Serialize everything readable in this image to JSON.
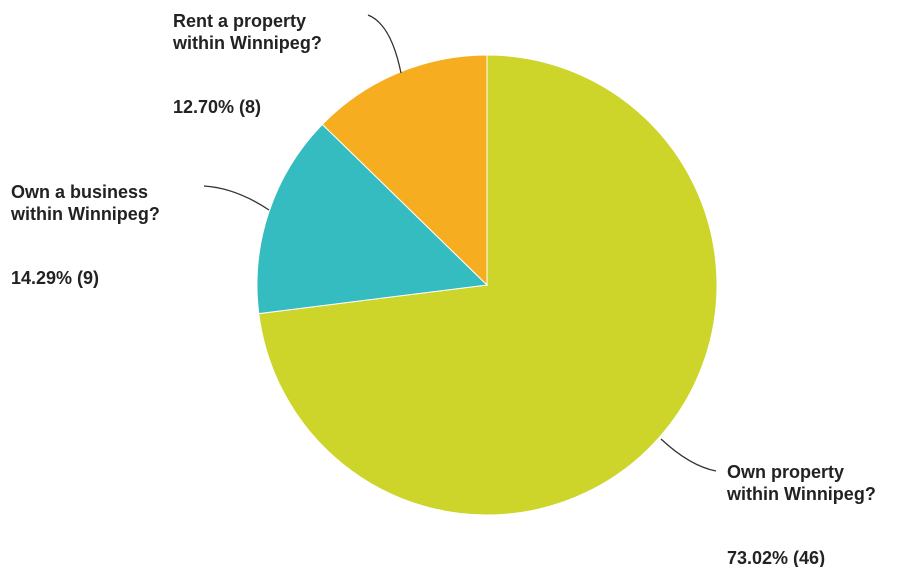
{
  "chart_data": {
    "type": "pie",
    "start_angle_deg": 0,
    "direction": "clockwise",
    "slices": [
      {
        "label_lines": [
          "Own property",
          "within Winnipeg?"
        ],
        "value_label": "73.02% (46)",
        "percent": 73.02,
        "count": 46,
        "color": "#cdd42a"
      },
      {
        "label_lines": [
          "Own a business",
          "within Winnipeg?"
        ],
        "value_label": "14.29% (9)",
        "percent": 14.29,
        "count": 9,
        "color": "#34bcc0"
      },
      {
        "label_lines": [
          "Rent a property",
          "within Winnipeg?"
        ],
        "value_label": "12.70% (8)",
        "percent": 12.7,
        "count": 8,
        "color": "#f6ae20"
      }
    ]
  }
}
